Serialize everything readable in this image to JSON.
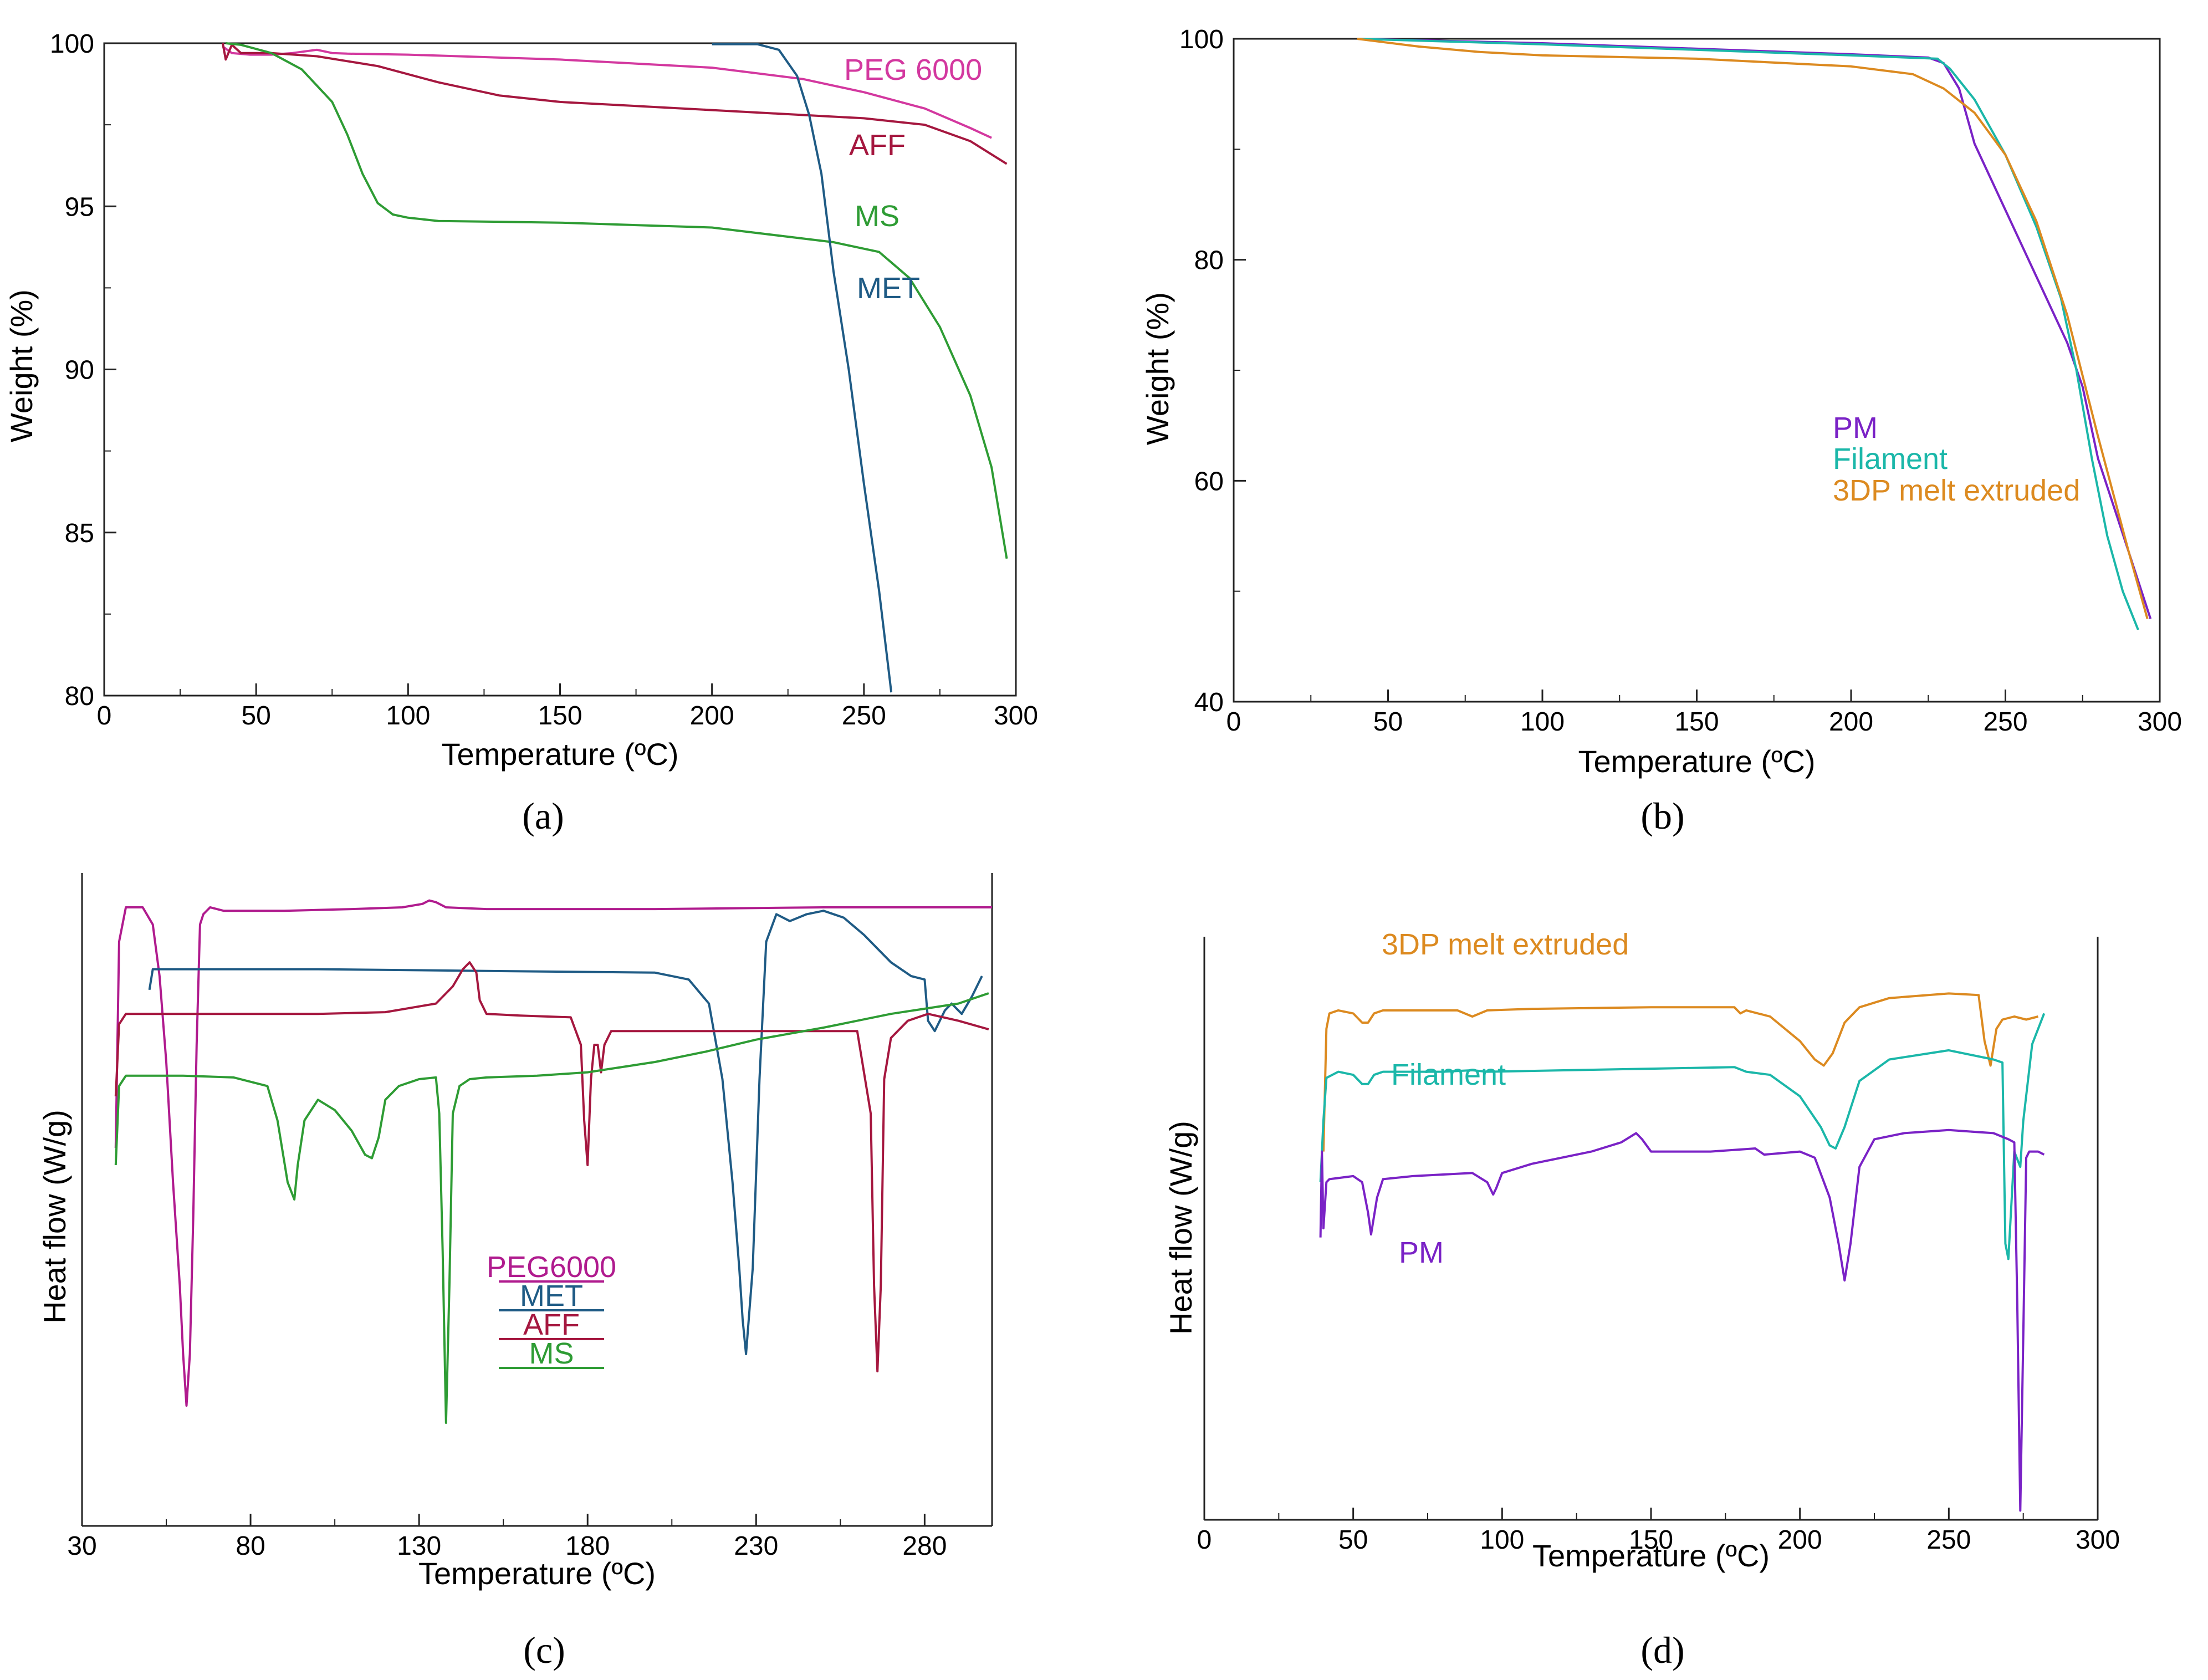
{
  "chart_data": [
    {
      "panel": "a",
      "type": "line",
      "panel_label": "(a)",
      "xlabel": "Temperature (ºC)",
      "ylabel": "Weight (%)",
      "xlim": [
        0,
        300
      ],
      "ylim": [
        80,
        100
      ],
      "xticks": [
        0,
        50,
        100,
        150,
        200,
        250,
        300
      ],
      "yticks": [
        80,
        85,
        90,
        95,
        100
      ],
      "series": [
        {
          "name": "PEG 6000",
          "color": "#d3389f",
          "x": [
            39,
            42,
            48,
            55,
            62,
            70,
            75,
            80,
            100,
            150,
            200,
            230,
            250,
            270,
            285,
            292
          ],
          "y": [
            99.9,
            99.7,
            99.65,
            99.65,
            99.7,
            99.8,
            99.7,
            99.68,
            99.65,
            99.5,
            99.25,
            98.9,
            98.5,
            98.0,
            97.4,
            97.1
          ]
        },
        {
          "name": "AFF",
          "color": "#a5173f",
          "x": [
            39,
            40,
            42,
            45,
            55,
            70,
            90,
            110,
            130,
            150,
            200,
            250,
            270,
            285,
            297
          ],
          "y": [
            100.0,
            99.5,
            99.95,
            99.7,
            99.7,
            99.6,
            99.3,
            98.8,
            98.4,
            98.2,
            97.95,
            97.7,
            97.5,
            97.0,
            96.3
          ]
        },
        {
          "name": "MS",
          "color": "#2e9c34",
          "x": [
            40,
            45,
            55,
            65,
            75,
            80,
            85,
            90,
            95,
            100,
            110,
            150,
            200,
            240,
            255,
            265,
            275,
            285,
            292,
            297
          ],
          "y": [
            100.0,
            99.95,
            99.7,
            99.2,
            98.2,
            97.2,
            96.0,
            95.1,
            94.75,
            94.65,
            94.55,
            94.5,
            94.35,
            93.9,
            93.6,
            92.8,
            91.3,
            89.2,
            87.0,
            84.2
          ]
        },
        {
          "name": "MET",
          "color": "#1f5b85",
          "x": [
            200,
            215,
            222,
            228,
            232,
            236,
            240,
            245,
            250,
            255,
            259
          ],
          "y": [
            99.97,
            99.97,
            99.8,
            99.0,
            97.8,
            96.0,
            93.0,
            90.0,
            86.5,
            83.2,
            80.1
          ]
        }
      ]
    },
    {
      "panel": "b",
      "type": "line",
      "panel_label": "(b)",
      "xlabel": "Temperature (ºC)",
      "ylabel": "Weight (%)",
      "xlim": [
        0,
        300
      ],
      "ylim": [
        40,
        100
      ],
      "xticks": [
        0,
        50,
        100,
        150,
        200,
        250,
        300
      ],
      "yticks": [
        40,
        60,
        80,
        100
      ],
      "series": [
        {
          "name": "PM",
          "color": "#7a22c6",
          "x": [
            40,
            100,
            150,
            200,
            225,
            230,
            235,
            240,
            250,
            260,
            270,
            275,
            280,
            290,
            297
          ],
          "y": [
            100.0,
            99.6,
            99.1,
            98.6,
            98.3,
            97.8,
            95.5,
            90.5,
            84.5,
            78.5,
            72.5,
            68.5,
            62.0,
            53.5,
            47.5
          ]
        },
        {
          "name": "Filament",
          "color": "#1bb7a9",
          "x": [
            40,
            100,
            150,
            200,
            228,
            232,
            240,
            250,
            260,
            268,
            273,
            278,
            283,
            288,
            293
          ],
          "y": [
            100.0,
            99.5,
            99.0,
            98.5,
            98.2,
            97.3,
            94.5,
            89.5,
            83.0,
            76.5,
            70.0,
            62.0,
            55.0,
            50.0,
            46.5
          ]
        },
        {
          "name": "3DP melt extruded",
          "color": "#dc8a20",
          "x": [
            40,
            60,
            80,
            100,
            150,
            200,
            220,
            230,
            240,
            250,
            260,
            270,
            280,
            290,
            296
          ],
          "y": [
            100.0,
            99.3,
            98.8,
            98.5,
            98.2,
            97.5,
            96.8,
            95.5,
            93.3,
            89.5,
            83.5,
            75.0,
            64.0,
            53.5,
            47.5
          ]
        }
      ]
    },
    {
      "panel": "c",
      "type": "line",
      "panel_label": "(c)",
      "xlabel": "Temperature (ºC)",
      "ylabel": "Heat flow (W/g)",
      "xlim": [
        30,
        300
      ],
      "ylim": [
        -0.8,
        1.1
      ],
      "y_axis_unlabeled": true,
      "xticks": [
        30,
        80,
        130,
        180,
        230,
        280
      ],
      "series": [
        {
          "name": "PEG6000",
          "color": "#b01b8e",
          "x": [
            40,
            41,
            43,
            45,
            48,
            51,
            53,
            55,
            57,
            59,
            60,
            61,
            62,
            63,
            64,
            65,
            66,
            68,
            72,
            90,
            110,
            125,
            131,
            133,
            135,
            138,
            150,
            200,
            250,
            300
          ],
          "y": [
            0.3,
            0.9,
            1.0,
            1.0,
            1.0,
            0.95,
            0.8,
            0.55,
            0.2,
            -0.1,
            -0.3,
            -0.45,
            -0.3,
            0.1,
            0.6,
            0.95,
            0.98,
            1.0,
            0.99,
            0.99,
            0.995,
            1.0,
            1.01,
            1.02,
            1.015,
            1.0,
            0.995,
            0.995,
            1.0,
            1.0
          ]
        },
        {
          "name": "MET",
          "color": "#1f5b85",
          "x": [
            50,
            51,
            60,
            100,
            150,
            200,
            210,
            216,
            220,
            223,
            225,
            226,
            227,
            229,
            231,
            233,
            236,
            240,
            245,
            250,
            256,
            262,
            270,
            276,
            280,
            281,
            283,
            285,
            286,
            288,
            291,
            294,
            297
          ],
          "y": [
            0.76,
            0.82,
            0.82,
            0.82,
            0.815,
            0.81,
            0.79,
            0.72,
            0.5,
            0.2,
            -0.05,
            -0.2,
            -0.3,
            -0.05,
            0.5,
            0.9,
            0.98,
            0.96,
            0.98,
            0.99,
            0.97,
            0.92,
            0.84,
            0.8,
            0.79,
            0.67,
            0.64,
            0.68,
            0.7,
            0.72,
            0.69,
            0.74,
            0.8
          ]
        },
        {
          "name": "AFF",
          "color": "#a5173f",
          "x": [
            40,
            41,
            43,
            45,
            60,
            100,
            120,
            135,
            140,
            143,
            145,
            147,
            148,
            150,
            160,
            175,
            178,
            179,
            180,
            181,
            182,
            183,
            184,
            185,
            187,
            200,
            230,
            260,
            264,
            265,
            266,
            267,
            268,
            270,
            275,
            281,
            290,
            299
          ],
          "y": [
            0.45,
            0.66,
            0.69,
            0.69,
            0.69,
            0.69,
            0.695,
            0.72,
            0.77,
            0.82,
            0.84,
            0.81,
            0.73,
            0.69,
            0.685,
            0.68,
            0.6,
            0.38,
            0.25,
            0.5,
            0.6,
            0.6,
            0.52,
            0.6,
            0.64,
            0.64,
            0.64,
            0.64,
            0.4,
            -0.1,
            -0.35,
            -0.1,
            0.5,
            0.62,
            0.67,
            0.69,
            0.67,
            0.645
          ]
        },
        {
          "name": "MS",
          "color": "#2e9c34",
          "x": [
            40,
            41,
            43,
            50,
            60,
            75,
            85,
            88,
            91,
            93,
            94,
            96,
            100,
            105,
            110,
            114,
            116,
            118,
            120,
            124,
            130,
            135,
            136,
            137,
            138,
            139,
            140,
            142,
            145,
            150,
            165,
            180,
            200,
            215,
            230,
            250,
            270,
            290,
            299
          ],
          "y": [
            0.25,
            0.48,
            0.51,
            0.51,
            0.51,
            0.505,
            0.48,
            0.38,
            0.2,
            0.15,
            0.25,
            0.38,
            0.44,
            0.41,
            0.35,
            0.28,
            0.27,
            0.33,
            0.44,
            0.48,
            0.5,
            0.505,
            0.4,
            0.0,
            -0.5,
            -0.1,
            0.4,
            0.48,
            0.5,
            0.505,
            0.51,
            0.52,
            0.55,
            0.58,
            0.615,
            0.65,
            0.69,
            0.72,
            0.75
          ]
        }
      ],
      "legend": [
        "PEG6000",
        "MET",
        "AFF",
        "MS"
      ]
    },
    {
      "panel": "d",
      "type": "line",
      "panel_label": "(d)",
      "xlabel": "Temperature (ºC)",
      "ylabel": "Heat flow (W/g)",
      "xlim": [
        0,
        300
      ],
      "ylim": [
        -0.6,
        1.3
      ],
      "y_axis_unlabeled": true,
      "xticks": [
        0,
        50,
        100,
        150,
        200,
        250,
        300
      ],
      "series": [
        {
          "name": "3DP melt extruded",
          "color": "#dc8a20",
          "x": [
            40,
            41,
            42,
            45,
            50,
            53,
            55,
            57,
            60,
            70,
            85,
            90,
            95,
            110,
            150,
            178,
            180,
            182,
            190,
            200,
            205,
            208,
            211,
            215,
            220,
            230,
            250,
            260,
            262,
            264,
            266,
            268,
            272,
            276,
            280
          ],
          "y": [
            0.6,
            1.0,
            1.05,
            1.06,
            1.05,
            1.02,
            1.02,
            1.05,
            1.06,
            1.06,
            1.06,
            1.04,
            1.06,
            1.065,
            1.07,
            1.07,
            1.05,
            1.06,
            1.04,
            0.96,
            0.9,
            0.88,
            0.92,
            1.02,
            1.07,
            1.1,
            1.115,
            1.11,
            0.96,
            0.88,
            1.0,
            1.03,
            1.04,
            1.03,
            1.04
          ]
        },
        {
          "name": "Filament",
          "color": "#1bb7a9",
          "x": [
            39,
            40,
            41,
            45,
            50,
            53,
            55,
            57,
            60,
            80,
            90,
            95,
            150,
            178,
            182,
            190,
            200,
            207,
            210,
            212,
            215,
            220,
            230,
            250,
            265,
            268,
            269,
            270,
            272,
            274,
            275,
            278,
            282
          ],
          "y": [
            0.5,
            0.7,
            0.84,
            0.86,
            0.85,
            0.82,
            0.82,
            0.85,
            0.86,
            0.86,
            0.865,
            0.86,
            0.87,
            0.875,
            0.86,
            0.85,
            0.78,
            0.68,
            0.62,
            0.61,
            0.68,
            0.83,
            0.9,
            0.93,
            0.9,
            0.89,
            0.3,
            0.25,
            0.6,
            0.55,
            0.7,
            0.95,
            1.05
          ]
        },
        {
          "name": "PM",
          "color": "#7a22c6",
          "x": [
            39,
            39.5,
            40,
            41,
            42,
            50,
            53,
            55,
            56,
            58,
            60,
            70,
            90,
            95,
            97,
            98,
            100,
            110,
            130,
            140,
            145,
            147,
            150,
            170,
            185,
            188,
            200,
            205,
            210,
            213,
            215,
            217,
            220,
            225,
            235,
            250,
            265,
            270,
            272,
            273,
            274,
            275,
            276,
            277,
            280,
            282
          ],
          "y": [
            0.32,
            0.6,
            0.35,
            0.5,
            0.51,
            0.52,
            0.5,
            0.4,
            0.33,
            0.45,
            0.51,
            0.52,
            0.53,
            0.5,
            0.46,
            0.48,
            0.53,
            0.56,
            0.6,
            0.63,
            0.66,
            0.64,
            0.6,
            0.6,
            0.61,
            0.59,
            0.6,
            0.58,
            0.45,
            0.3,
            0.18,
            0.3,
            0.55,
            0.64,
            0.66,
            0.67,
            0.66,
            0.64,
            0.63,
            0.1,
            -0.57,
            0.0,
            0.58,
            0.6,
            0.6,
            0.59
          ]
        }
      ]
    }
  ],
  "labels": {
    "a": {
      "PEG 6000": "PEG 6000",
      "AFF": "AFF",
      "MS": "MS",
      "MET": "MET"
    },
    "b": {
      "PM": "PM",
      "Filament": "Filament",
      "3DP melt extruded": "3DP melt extruded"
    },
    "d": {
      "3DP melt extruded": "3DP melt extruded",
      "Filament": "Filament",
      "PM": "PM"
    }
  }
}
